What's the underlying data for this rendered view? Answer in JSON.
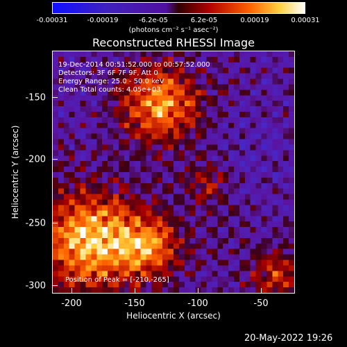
{
  "colorbar": {
    "ticks": [
      "-0.00031",
      "-0.00019",
      "-6.2e-05",
      "6.2e-05",
      "0.00019",
      "0.00031"
    ],
    "units": "(photons cm⁻² s⁻¹ asec⁻²)"
  },
  "title": "Reconstructed RHESSI Image",
  "annotations": {
    "time": "19-Dec-2014 00:51:52.000 to 00:57:52.000",
    "detectors": "Detectors: 3F 6F 7F 9F, Att 0",
    "energy": "Energy Range: 25.0 - 50.0 keV",
    "clean": "Clean     Total counts: 4.05e+03",
    "peak": "Position of Peak = [-210,-265]"
  },
  "axes": {
    "xlabel": "Heliocentric X (arcsec)",
    "ylabel": "Heliocentric Y (arcsec)",
    "xticks": [
      "-200",
      "-150",
      "-100",
      "-50"
    ],
    "yticks": [
      "-150",
      "-200",
      "-250",
      "-300"
    ]
  },
  "footer": {
    "timestamp": "20-May-2022 19:26"
  }
}
